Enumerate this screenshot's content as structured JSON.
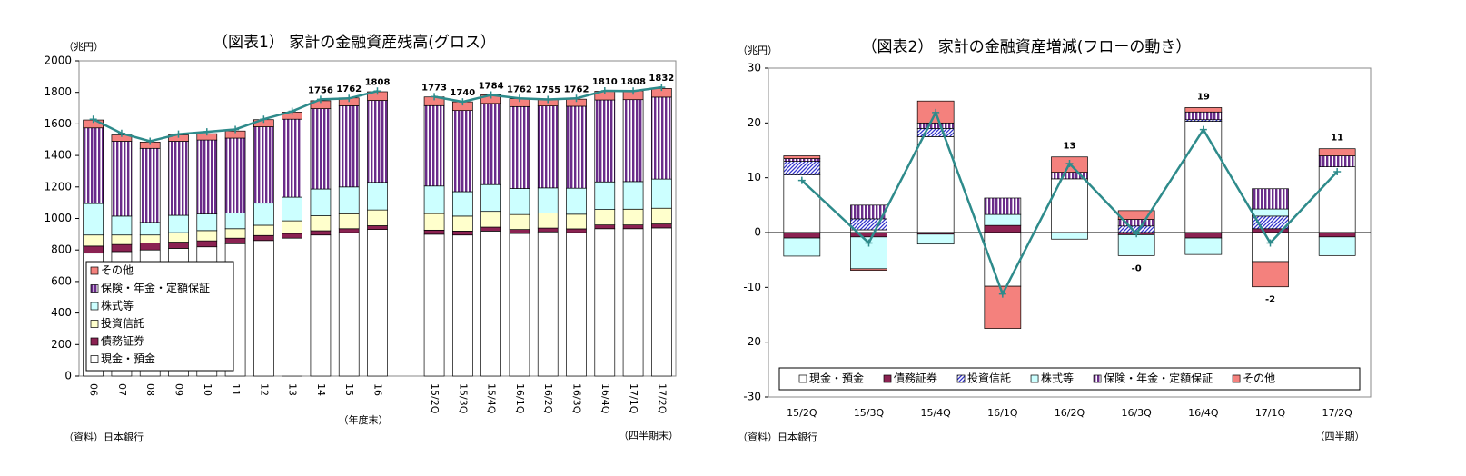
{
  "chart_data": [
    {
      "type": "bar",
      "stacked": true,
      "title": "（図表1）  家計の金融資産残高(グロス）",
      "y_unit": "（兆円）",
      "x_label": "（年度末）",
      "x_label_2": "（四半期末）",
      "source": "（資料）日本銀行",
      "categories": [
        "06",
        "07",
        "08",
        "09",
        "10",
        "11",
        "12",
        "13",
        "14",
        "15",
        "16",
        null,
        "15/2Q",
        "15/3Q",
        "15/4Q",
        "16/1Q",
        "16/2Q",
        "16/3Q",
        "16/4Q",
        "17/1Q",
        "17/2Q"
      ],
      "series": [
        {
          "name": "現金・預金",
          "color": "#ffffff",
          "values": [
            780,
            790,
            800,
            810,
            820,
            840,
            860,
            875,
            895,
            910,
            930,
            null,
            900,
            895,
            920,
            905,
            915,
            910,
            935,
            935,
            940
          ]
        },
        {
          "name": "債務証券",
          "color": "#8b2252",
          "values": [
            45,
            45,
            45,
            40,
            38,
            35,
            32,
            30,
            27,
            25,
            24,
            null,
            26,
            25,
            25,
            25,
            24,
            24,
            24,
            24,
            25
          ]
        },
        {
          "name": "投資信託",
          "color": "#ffffcc",
          "values": [
            70,
            60,
            50,
            60,
            65,
            60,
            65,
            80,
            95,
            95,
            100,
            null,
            105,
            95,
            100,
            95,
            95,
            93,
            98,
            100,
            100
          ]
        },
        {
          "name": "株式等",
          "color": "#ccffff",
          "values": [
            200,
            120,
            80,
            110,
            105,
            100,
            140,
            150,
            170,
            170,
            175,
            null,
            175,
            155,
            170,
            165,
            160,
            165,
            175,
            175,
            185
          ]
        },
        {
          "name": "保険・年金・定額保証",
          "color": "#6a2c8a",
          "hatch": "vertical",
          "values": [
            480,
            475,
            470,
            470,
            470,
            475,
            485,
            495,
            510,
            515,
            520,
            null,
            510,
            515,
            515,
            520,
            520,
            520,
            520,
            520,
            520
          ]
        },
        {
          "name": "その他",
          "color": "#f4817d",
          "values": [
            50,
            40,
            40,
            40,
            40,
            45,
            45,
            45,
            50,
            50,
            55,
            null,
            55,
            55,
            55,
            50,
            45,
            45,
            55,
            55,
            55
          ]
        }
      ],
      "line": {
        "color": "#2e8b8b",
        "values": [
          1630,
          1540,
          1490,
          1535,
          1550,
          1565,
          1630,
          1680,
          1756,
          1762,
          1808,
          null,
          1773,
          1740,
          1784,
          1762,
          1755,
          1762,
          1810,
          1808,
          1832
        ],
        "value_labels": [
          null,
          null,
          null,
          null,
          null,
          null,
          null,
          null,
          "1756",
          "1762",
          "1808",
          null,
          "1773",
          "1740",
          "1784",
          "1762",
          "1755",
          "1762",
          "1810",
          "1808",
          "1832"
        ]
      },
      "ylim": [
        0,
        2000
      ],
      "yticks": [
        0,
        200,
        400,
        600,
        800,
        1000,
        1200,
        1400,
        1600,
        1800,
        2000
      ],
      "legend": "lower left",
      "grid": false
    },
    {
      "type": "bar",
      "stacked": true,
      "title": "（図表2）  家計の金融資産増減(フローの動き）",
      "y_unit": "（兆円）",
      "x_label": "（四半期）",
      "source": "（資料）日本銀行",
      "categories": [
        "15/2Q",
        "15/3Q",
        "15/4Q",
        "16/1Q",
        "16/2Q",
        "16/3Q",
        "16/4Q",
        "17/1Q",
        "17/2Q"
      ],
      "series": [
        {
          "name": "現金・預金",
          "color": "#ffffff",
          "values": [
            10.5,
            0.5,
            17.5,
            -9.8,
            9.8,
            0,
            20.3,
            -5.3,
            12
          ]
        },
        {
          "name": "債務証券",
          "color": "#8b2252",
          "values": [
            -1,
            -0.8,
            -0.3,
            1.3,
            0,
            -0.4,
            -1,
            0.7,
            -0.8
          ]
        },
        {
          "name": "投資信託",
          "color": "#3333cc",
          "hatch": "diagonal",
          "values": [
            2.5,
            2,
            1.5,
            0,
            0,
            1.2,
            0.3,
            2.3,
            0
          ]
        },
        {
          "name": "株式等",
          "color": "#ccffff",
          "values": [
            -3.3,
            -5.8,
            -1.8,
            2,
            -1.2,
            -3.8,
            -3,
            1.3,
            -3.4
          ]
        },
        {
          "name": "保険・年金・定額保証",
          "color": "#6a2c8a",
          "hatch": "vertical",
          "values": [
            0.5,
            2.5,
            1,
            3,
            1.2,
            1.2,
            1.4,
            3.7,
            2
          ]
        },
        {
          "name": "その他",
          "color": "#f4817d",
          "values": [
            0.5,
            -0.3,
            4,
            -7.7,
            2.8,
            1.6,
            0.8,
            -4.6,
            1.3
          ]
        }
      ],
      "line": {
        "color": "#2e8b8b",
        "values": [
          9.5,
          -1.9,
          21.9,
          -11.2,
          12.6,
          -0.2,
          18.8,
          -1.9,
          11.1
        ],
        "value_labels": [
          null,
          null,
          null,
          null,
          "13",
          "-0",
          "19",
          "-2",
          "11"
        ]
      },
      "ylim": [
        -30,
        30
      ],
      "yticks": [
        -30,
        -20,
        -10,
        0,
        10,
        20,
        30
      ],
      "legend": "lower center",
      "grid": false
    }
  ]
}
